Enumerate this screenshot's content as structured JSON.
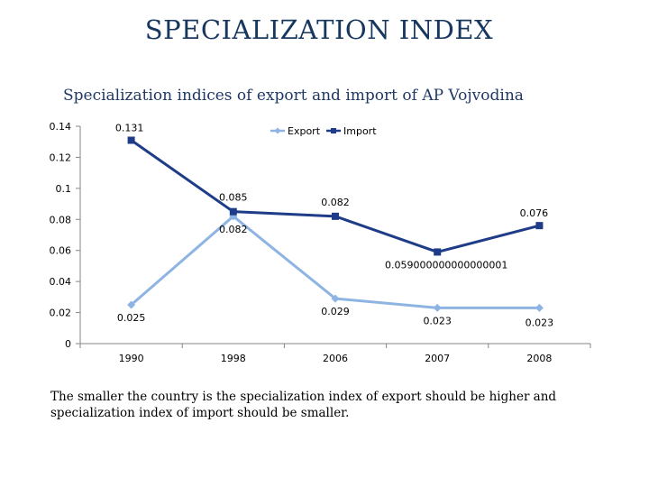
{
  "slide_title": "SPECIALIZATION INDEX",
  "note": "The smaller the country is the specialization index of export should be higher and specialization index of import should be smaller.",
  "chart_data": {
    "type": "line",
    "title": "Specialization indices of export and import of AP Vojvodina",
    "categories": [
      "1990",
      "1998",
      "2006",
      "2007",
      "2008"
    ],
    "ylim": [
      0,
      0.14
    ],
    "yticks": [
      "0",
      "0.02",
      "0.04",
      "0.06",
      "0.08",
      "0.1",
      "0.12",
      "0.14"
    ],
    "legend_position": "top",
    "series": [
      {
        "name": "Export",
        "color": "#8db4e2",
        "marker": "diamond",
        "values": [
          0.025,
          0.082,
          0.029,
          0.023,
          0.023
        ],
        "labels": [
          "0.025",
          "0.082",
          "0.029",
          "0.023",
          "0.023"
        ]
      },
      {
        "name": "Import",
        "color": "#1f3c88",
        "marker": "square",
        "values": [
          0.131,
          0.085,
          0.082,
          0.059,
          0.076
        ],
        "labels": [
          "0.131",
          "0.085",
          "0.082",
          "0.059000000000000001",
          "0.076"
        ]
      }
    ]
  }
}
